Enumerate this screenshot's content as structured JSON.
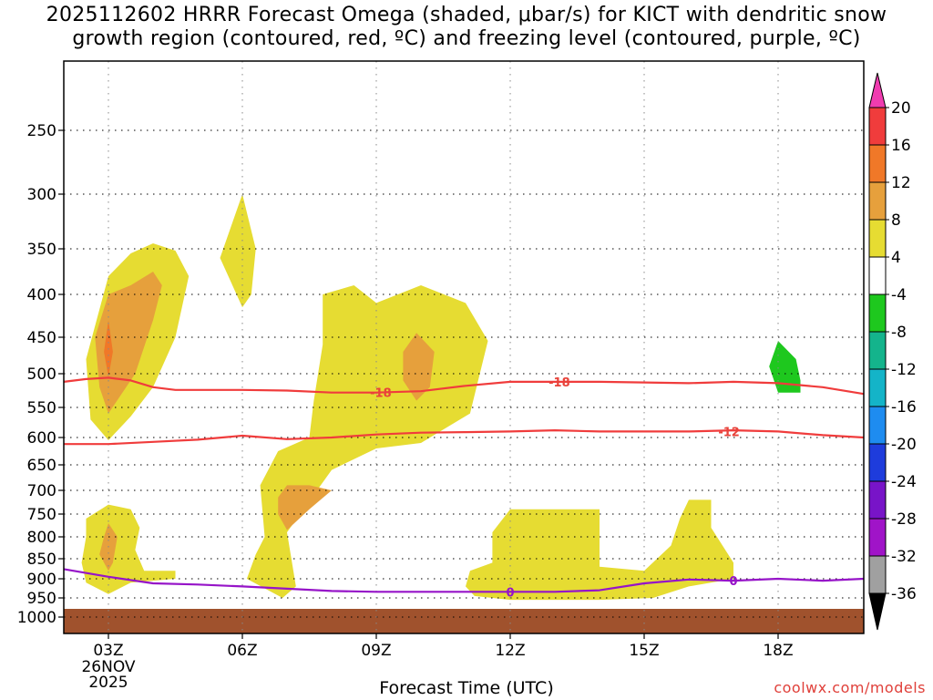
{
  "chart_data": {
    "type": "contour",
    "title_lines": [
      "2025112602 HRRR Forecast Omega (shaded, μbar/s) for KICT with dendritic snow",
      "growth region (contoured, red, ºC) and freezing level (contoured, purple, ºC)"
    ],
    "xlabel": "Forecast Time (UTC)",
    "x_ticks": [
      {
        "hour": 3,
        "label": "03Z",
        "sub": [
          "26NOV",
          "2025"
        ]
      },
      {
        "hour": 6,
        "label": "06Z"
      },
      {
        "hour": 9,
        "label": "09Z"
      },
      {
        "hour": 12,
        "label": "12Z"
      },
      {
        "hour": 15,
        "label": "15Z"
      },
      {
        "hour": 18,
        "label": "18Z"
      }
    ],
    "xlim": [
      2,
      20
    ],
    "y_ticks": [
      250,
      300,
      350,
      400,
      450,
      500,
      550,
      600,
      650,
      700,
      750,
      800,
      850,
      900,
      950,
      1000
    ],
    "ylim": [
      200,
      1035
    ],
    "grid": true,
    "colorbar": {
      "labels": [
        "20",
        "16",
        "12",
        "8",
        "4",
        "-4",
        "-8",
        "-12",
        "-16",
        "-20",
        "-24",
        "-28",
        "-32",
        "-36"
      ],
      "colors": [
        "#f03cb0",
        "#f03c3c",
        "#f07828",
        "#e6a03c",
        "#e6dc32",
        "#ffffff",
        "#1ec81e",
        "#14b48c",
        "#14b4c8",
        "#1e8cf0",
        "#1e3cdc",
        "#7814c8",
        "#a014c8",
        "#a0a0a0",
        "#000000"
      ]
    },
    "contours": [
      {
        "label": "-18",
        "color": "#f03c3c",
        "points": [
          [
            2,
            512
          ],
          [
            2.5,
            508
          ],
          [
            3,
            506
          ],
          [
            3.5,
            510
          ],
          [
            4,
            520
          ],
          [
            4.5,
            524
          ],
          [
            6,
            524
          ],
          [
            7,
            525
          ],
          [
            8,
            528
          ],
          [
            9,
            528
          ],
          [
            10,
            526
          ],
          [
            11,
            518
          ],
          [
            12,
            512
          ],
          [
            14,
            512
          ],
          [
            16,
            514
          ],
          [
            17,
            512
          ],
          [
            18,
            514
          ],
          [
            19,
            520
          ],
          [
            20,
            530
          ]
        ]
      },
      {
        "label": "-12",
        "color": "#f03c3c",
        "points": [
          [
            2,
            612
          ],
          [
            3,
            612
          ],
          [
            4,
            608
          ],
          [
            5,
            604
          ],
          [
            6,
            597
          ],
          [
            7,
            603
          ],
          [
            8,
            600
          ],
          [
            9,
            595
          ],
          [
            10,
            592
          ],
          [
            11,
            591
          ],
          [
            12,
            590
          ],
          [
            13,
            588
          ],
          [
            14,
            590
          ],
          [
            15,
            590
          ],
          [
            16,
            590
          ],
          [
            17,
            588
          ],
          [
            18,
            590
          ],
          [
            19,
            596
          ],
          [
            20,
            600
          ]
        ]
      },
      {
        "label": "0",
        "color": "#9614c8",
        "points": [
          [
            2,
            876
          ],
          [
            3,
            895
          ],
          [
            4,
            912
          ],
          [
            5,
            915
          ],
          [
            6,
            920
          ],
          [
            7,
            926
          ],
          [
            8,
            932
          ],
          [
            9,
            934
          ],
          [
            10,
            934
          ],
          [
            11,
            934
          ],
          [
            12,
            934
          ],
          [
            13,
            934
          ],
          [
            14,
            930
          ],
          [
            15,
            912
          ],
          [
            16,
            902
          ],
          [
            17,
            905
          ],
          [
            18,
            900
          ],
          [
            19,
            905
          ],
          [
            20,
            900
          ]
        ]
      }
    ],
    "labels_text": {
      "c18": "-18",
      "c18b": "-18",
      "c12": "-12",
      "c0": "0",
      "c0b": "0"
    },
    "omega_shading": [
      {
        "level": "4",
        "color": "#e6dc32",
        "polygon": [
          [
            2.5,
            480
          ],
          [
            3,
            380
          ],
          [
            3.5,
            355
          ],
          [
            4,
            345
          ],
          [
            4.5,
            352
          ],
          [
            4.8,
            380
          ],
          [
            4.5,
            450
          ],
          [
            4,
            520
          ],
          [
            3.5,
            565
          ],
          [
            3,
            605
          ],
          [
            2.6,
            570
          ]
        ]
      },
      {
        "level": "8",
        "color": "#e6a03c",
        "polygon": [
          [
            2.7,
            450
          ],
          [
            3,
            400
          ],
          [
            3.5,
            390
          ],
          [
            4,
            375
          ],
          [
            4.2,
            390
          ],
          [
            4,
            430
          ],
          [
            3.6,
            500
          ],
          [
            3,
            560
          ],
          [
            2.8,
            520
          ]
        ]
      },
      {
        "level": "12",
        "color": "#f07828",
        "polygon": [
          [
            2.9,
            470
          ],
          [
            3,
            430
          ],
          [
            3.1,
            470
          ],
          [
            3,
            505
          ]
        ]
      },
      {
        "level": "4",
        "color": "#e6dc32",
        "polygon": [
          [
            5.5,
            360
          ],
          [
            6,
            300
          ],
          [
            6.3,
            350
          ],
          [
            6.2,
            400
          ],
          [
            6,
            415
          ]
        ]
      },
      {
        "level": "4",
        "color": "#e6dc32",
        "polygon": [
          [
            7.8,
            400
          ],
          [
            8.5,
            390
          ],
          [
            9,
            410
          ],
          [
            10,
            390
          ],
          [
            11,
            410
          ],
          [
            11.5,
            455
          ],
          [
            11.1,
            560
          ],
          [
            10,
            610
          ],
          [
            9,
            620
          ],
          [
            8,
            660
          ],
          [
            7,
            790
          ],
          [
            7.2,
            920
          ],
          [
            6.9,
            950
          ],
          [
            6.1,
            900
          ],
          [
            6.3,
            840
          ],
          [
            6.5,
            800
          ],
          [
            6.4,
            690
          ],
          [
            6.8,
            625
          ],
          [
            7.5,
            600
          ],
          [
            7.6,
            540
          ],
          [
            7.8,
            460
          ]
        ]
      },
      {
        "level": "8",
        "color": "#e6a03c",
        "polygon": [
          [
            9.6,
            470
          ],
          [
            9.9,
            445
          ],
          [
            10.3,
            470
          ],
          [
            10.2,
            520
          ],
          [
            9.9,
            540
          ],
          [
            9.6,
            510
          ]
        ]
      },
      {
        "level": "8",
        "color": "#e6a03c",
        "polygon": [
          [
            6.8,
            715
          ],
          [
            7,
            690
          ],
          [
            7.5,
            690
          ],
          [
            8,
            700
          ],
          [
            7.5,
            740
          ],
          [
            7.0,
            785
          ],
          [
            6.8,
            750
          ]
        ]
      },
      {
        "level": "4",
        "color": "#e6dc32",
        "polygon": [
          [
            2.5,
            760
          ],
          [
            3,
            730
          ],
          [
            3.5,
            740
          ],
          [
            3.7,
            780
          ],
          [
            3.6,
            830
          ],
          [
            3.8,
            880
          ],
          [
            4.5,
            880
          ],
          [
            4.5,
            900
          ],
          [
            3.5,
            910
          ],
          [
            3,
            940
          ],
          [
            2.5,
            910
          ],
          [
            2.4,
            860
          ],
          [
            2.5,
            800
          ]
        ]
      },
      {
        "level": "8",
        "color": "#e6a03c",
        "polygon": [
          [
            2.9,
            800
          ],
          [
            3,
            770
          ],
          [
            3.2,
            800
          ],
          [
            3.1,
            860
          ],
          [
            3,
            880
          ],
          [
            2.8,
            840
          ]
        ]
      },
      {
        "level": "4",
        "color": "#e6dc32",
        "polygon": [
          [
            11.6,
            790
          ],
          [
            12,
            740
          ],
          [
            14,
            740
          ],
          [
            14,
            870
          ],
          [
            15,
            880
          ],
          [
            15.6,
            820
          ],
          [
            15.8,
            760
          ],
          [
            16,
            720
          ],
          [
            16.5,
            720
          ],
          [
            16.5,
            780
          ],
          [
            17,
            860
          ],
          [
            17,
            900
          ],
          [
            16,
            920
          ],
          [
            15.2,
            950
          ],
          [
            14,
            955
          ],
          [
            12,
            955
          ],
          [
            11.2,
            945
          ],
          [
            11,
            920
          ],
          [
            11.1,
            880
          ],
          [
            11.6,
            860
          ]
        ]
      },
      {
        "level": "-4",
        "color": "#1ec81e",
        "polygon": [
          [
            17.8,
            490
          ],
          [
            18,
            455
          ],
          [
            18.4,
            480
          ],
          [
            18.5,
            510
          ],
          [
            18.5,
            528
          ],
          [
            18,
            528
          ]
        ]
      }
    ]
  },
  "credit": "coolwx.com/models"
}
